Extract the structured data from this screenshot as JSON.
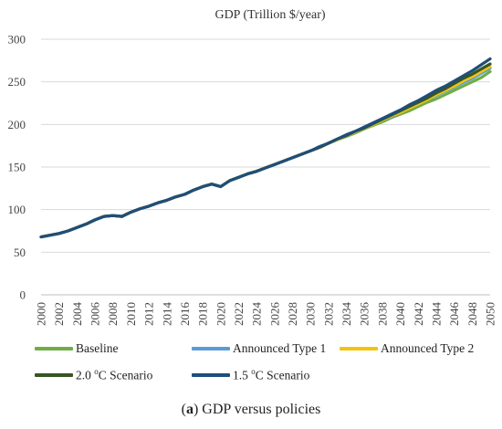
{
  "chart_data": {
    "type": "line",
    "title": "GDP (Trillion $/year)",
    "xlabel": "",
    "ylabel": "",
    "xlim": [
      2000,
      2050
    ],
    "ylim": [
      0,
      300
    ],
    "yticks": [
      0,
      50,
      100,
      150,
      200,
      250,
      300
    ],
    "xticks": [
      "2000",
      "2002",
      "2004",
      "2006",
      "2008",
      "2010",
      "2012",
      "2014",
      "2016",
      "2018",
      "2020",
      "2022",
      "2024",
      "2026",
      "2028",
      "2030",
      "2032",
      "2034",
      "2036",
      "2038",
      "2040",
      "2042",
      "2044",
      "2046",
      "2048",
      "2050"
    ],
    "grid": "horizontal",
    "legend_position": "bottom",
    "x": [
      2000,
      2001,
      2002,
      2003,
      2004,
      2005,
      2006,
      2007,
      2008,
      2009,
      2010,
      2011,
      2012,
      2013,
      2014,
      2015,
      2016,
      2017,
      2018,
      2019,
      2020,
      2021,
      2022,
      2023,
      2024,
      2025,
      2026,
      2027,
      2028,
      2029,
      2030,
      2031,
      2032,
      2033,
      2034,
      2035,
      2036,
      2037,
      2038,
      2039,
      2040,
      2041,
      2042,
      2043,
      2044,
      2045,
      2046,
      2047,
      2048,
      2049,
      2050
    ],
    "series": [
      {
        "name": "Baseline",
        "color": "#70ad47",
        "values": [
          68,
          70,
          72,
          75,
          79,
          83,
          88,
          92,
          93,
          92,
          97,
          101,
          104,
          108,
          111,
          115,
          118,
          123,
          127,
          130,
          127,
          134,
          138,
          142,
          145,
          149,
          153,
          157,
          161,
          165,
          169,
          173,
          178,
          182,
          186,
          190,
          195,
          199,
          203,
          208,
          212,
          216,
          221,
          226,
          230,
          235,
          240,
          245,
          250,
          255,
          262
        ]
      },
      {
        "name": "Announced Type 1",
        "color": "#5b9bd5",
        "values": [
          68,
          70,
          72,
          75,
          79,
          83,
          88,
          92,
          93,
          92,
          97,
          101,
          104,
          108,
          111,
          115,
          118,
          123,
          127,
          130,
          127,
          134,
          138,
          142,
          145,
          149,
          153,
          157,
          161,
          165,
          169,
          173,
          178,
          182,
          187,
          191,
          196,
          200,
          205,
          209,
          214,
          219,
          224,
          229,
          234,
          239,
          244,
          249,
          254,
          260,
          266
        ]
      },
      {
        "name": "Announced Type 2",
        "color": "#f2c40f",
        "values": [
          68,
          70,
          72,
          75,
          79,
          83,
          88,
          92,
          93,
          92,
          97,
          101,
          104,
          108,
          111,
          115,
          118,
          123,
          127,
          130,
          127,
          134,
          138,
          142,
          145,
          149,
          153,
          157,
          161,
          165,
          169,
          173,
          178,
          182,
          187,
          191,
          196,
          200,
          205,
          210,
          214,
          219,
          224,
          229,
          235,
          240,
          245,
          251,
          256,
          262,
          268
        ]
      },
      {
        "name": "2.0 °C Scenario",
        "color": "#375623",
        "values": [
          68,
          70,
          72,
          75,
          79,
          83,
          88,
          92,
          93,
          92,
          97,
          101,
          104,
          108,
          111,
          115,
          118,
          123,
          127,
          130,
          127,
          134,
          138,
          142,
          145,
          149,
          153,
          157,
          161,
          165,
          169,
          173,
          178,
          183,
          187,
          192,
          196,
          201,
          206,
          211,
          216,
          221,
          226,
          231,
          237,
          242,
          248,
          254,
          259,
          265,
          271
        ]
      },
      {
        "name": "1.5 °C Scenario",
        "color": "#1f4e79",
        "values": [
          68,
          70,
          72,
          75,
          79,
          83,
          88,
          92,
          93,
          92,
          97,
          101,
          104,
          108,
          111,
          115,
          118,
          123,
          127,
          130,
          127,
          134,
          138,
          142,
          145,
          149,
          153,
          157,
          161,
          165,
          169,
          174,
          178,
          183,
          188,
          192,
          197,
          202,
          207,
          212,
          217,
          223,
          228,
          234,
          240,
          245,
          251,
          257,
          263,
          270,
          277
        ]
      }
    ]
  },
  "legend": [
    {
      "label": "Baseline",
      "color": "#70ad47"
    },
    {
      "label": "Announced Type 1",
      "color": "#5b9bd5"
    },
    {
      "label": "Announced Type 2",
      "color": "#f2c40f"
    },
    {
      "label": "2.0 ",
      "sup": "o",
      "rest": "C Scenario",
      "color": "#375623"
    },
    {
      "label": "1.5 ",
      "sup": "o",
      "rest": "C Scenario",
      "color": "#1f4e79"
    }
  ],
  "caption": {
    "bold": "a",
    "text": " GDP versus policies",
    "open": "(",
    "close": ")"
  }
}
